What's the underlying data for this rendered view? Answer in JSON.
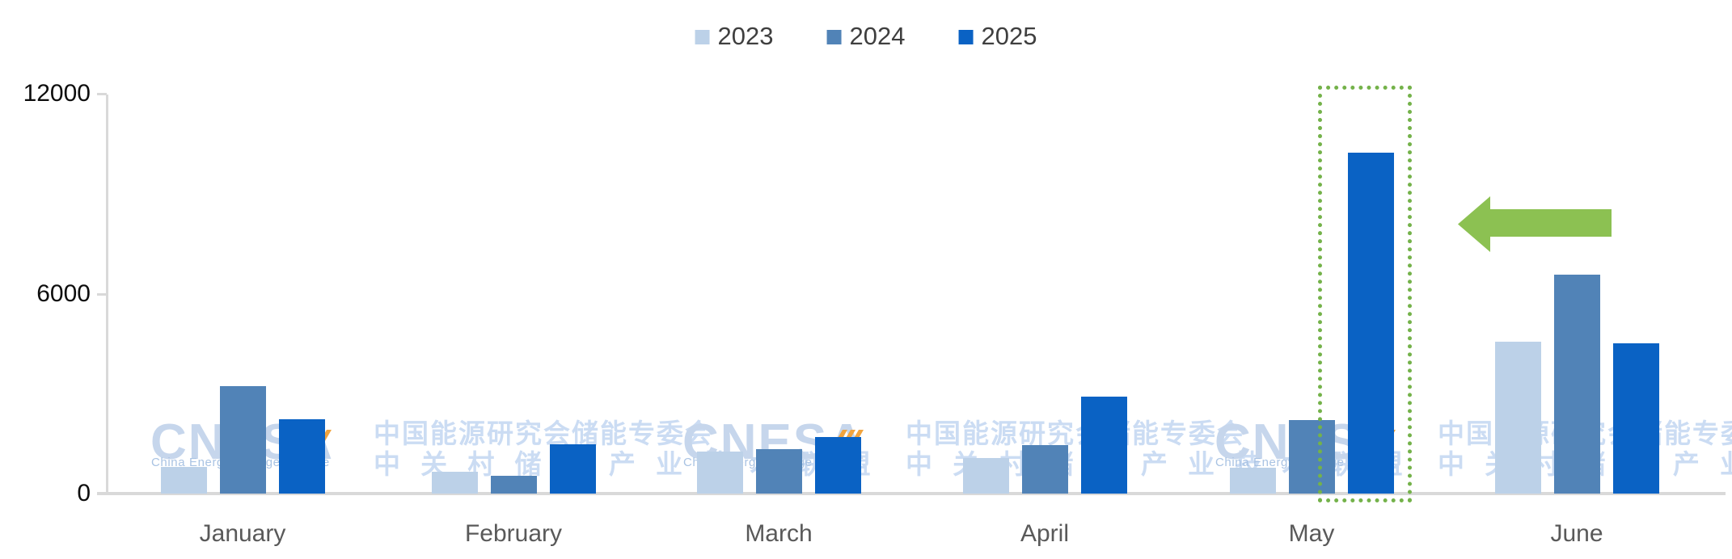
{
  "chart_data": {
    "type": "bar",
    "categories": [
      "January",
      "February",
      "March",
      "April",
      "May",
      "June"
    ],
    "series": [
      {
        "name": "2023",
        "color": "#bcd1e8",
        "values": [
          800,
          650,
          1250,
          1060,
          780,
          4560
        ]
      },
      {
        "name": "2024",
        "color": "#5183b7",
        "values": [
          3230,
          530,
          1330,
          1450,
          2200,
          6580
        ]
      },
      {
        "name": "2025",
        "color": "#0a62c4",
        "values": [
          2220,
          1470,
          1690,
          2920,
          10220,
          4510
        ]
      }
    ],
    "title": "",
    "xlabel": "",
    "ylabel": "",
    "ylim": [
      0,
      12000
    ],
    "yticks": [
      12000,
      6000,
      0
    ],
    "grid": false,
    "legend_position": "top-center",
    "axis_color": "#d9d9d9"
  },
  "annotations": {
    "highlight_box": {
      "target": "May 2025 bar",
      "style": "dotted",
      "color": "#74b24a"
    },
    "arrow": {
      "direction": "left",
      "color": "#8cc152"
    }
  },
  "watermark": {
    "logo_text": "CNESA",
    "logo_tagline": "China Energy Storage Alliance",
    "chinese_line1": "中国能源研究会储能专委会",
    "chinese_line2": "中 关 村 储 能 产 业 技 术 联 盟",
    "logo_color": "#c6d6ec",
    "chevron_color": "#f2a43e",
    "repeat_count": 3
  }
}
